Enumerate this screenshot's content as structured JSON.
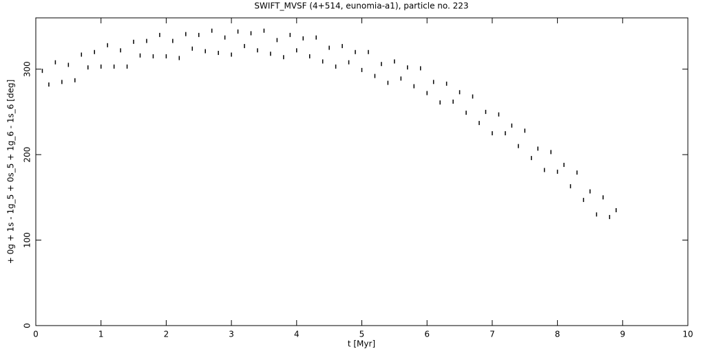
{
  "chart_data": {
    "type": "scatter",
    "title": "SWIFT_MVSF (4+514, eunomia-a1), particle no. 223",
    "x_label": "t [Myr]",
    "y_label": "+ 0g + 1s - 1g_5 + 0s_5 + 1g_6 - 1s_6 [deg]",
    "color": "#000000",
    "xlim": [
      0,
      10
    ],
    "xticks": [
      0,
      1,
      2,
      3,
      4,
      5,
      6,
      7,
      8,
      9,
      10
    ],
    "ylim": [
      0,
      360
    ],
    "yticks": [
      0,
      100,
      200,
      300
    ],
    "x": [
      0.1,
      0.2,
      0.3,
      0.4,
      0.5,
      0.6,
      0.7,
      0.8,
      0.9,
      1.0,
      1.1,
      1.2,
      1.3,
      1.4,
      1.5,
      1.6,
      1.7,
      1.8,
      1.9,
      2.0,
      2.1,
      2.2,
      2.3,
      2.4,
      2.5,
      2.6,
      2.7,
      2.8,
      2.9,
      3.0,
      3.1,
      3.2,
      3.3,
      3.4,
      3.5,
      3.6,
      3.7,
      3.8,
      3.9,
      4.0,
      4.1,
      4.2,
      4.3,
      4.4,
      4.5,
      4.6,
      4.7,
      4.8,
      4.9,
      5.0,
      5.1,
      5.2,
      5.3,
      5.4,
      5.5,
      5.6,
      5.7,
      5.8,
      5.9,
      6.0,
      6.1,
      6.2,
      6.3,
      6.4,
      6.5,
      6.6,
      6.7,
      6.8,
      6.9,
      7.0,
      7.1,
      7.2,
      7.3,
      7.4,
      7.5,
      7.6,
      7.7,
      7.8,
      7.9,
      8.0,
      8.1,
      8.2,
      8.3,
      8.4,
      8.5,
      8.6,
      8.7,
      8.8,
      8.9
    ],
    "values": [
      298,
      282,
      308,
      285,
      305,
      287,
      317,
      302,
      320,
      303,
      328,
      303,
      322,
      303,
      332,
      316,
      333,
      315,
      340,
      315,
      333,
      313,
      341,
      324,
      340,
      321,
      345,
      319,
      337,
      317,
      344,
      327,
      342,
      322,
      345,
      318,
      334,
      314,
      340,
      322,
      336,
      315,
      337,
      309,
      325,
      303,
      327,
      308,
      320,
      299,
      320,
      292,
      306,
      284,
      309,
      289,
      302,
      280,
      301,
      272,
      285,
      261,
      283,
      262,
      273,
      249,
      268,
      237,
      250,
      225,
      247,
      225,
      234,
      210,
      228,
      196,
      207,
      182,
      203,
      180,
      188,
      163,
      179,
      147,
      157,
      130,
      150,
      127,
      135
    ]
  }
}
